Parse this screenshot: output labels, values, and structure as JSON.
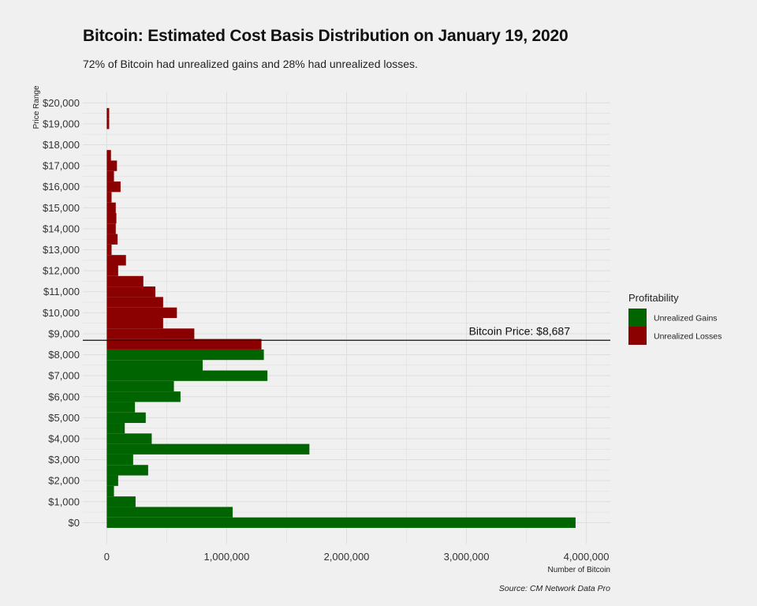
{
  "title": "Bitcoin: Estimated Cost Basis Distribution on January 19, 2020",
  "subtitle": "72% of Bitcoin had unrealized gains and 28% had unrealized losses.",
  "source": "Source: CM Network Data Pro",
  "colors": {
    "background": "#f0f0f0",
    "grid": "#dedede",
    "gains": "#006400",
    "losses": "#8b0000",
    "price_line": "#111111"
  },
  "chart_data": {
    "type": "bar",
    "orientation": "horizontal",
    "title": "Bitcoin: Estimated Cost Basis Distribution on January 19, 2020",
    "xlabel": "Number of Bitcoin",
    "ylabel": "Price Range",
    "xlim": [
      -200000,
      4200000
    ],
    "ylim": [
      -1000,
      20500
    ],
    "bin_width": 500,
    "x_ticks": [
      0,
      1000000,
      2000000,
      3000000,
      4000000
    ],
    "x_tick_labels": [
      "0",
      "1,000,000",
      "2,000,000",
      "3,000,000",
      "4,000,000"
    ],
    "y_ticks": [
      0,
      1000,
      2000,
      3000,
      4000,
      5000,
      6000,
      7000,
      8000,
      9000,
      10000,
      11000,
      12000,
      13000,
      14000,
      15000,
      16000,
      17000,
      18000,
      19000,
      20000
    ],
    "y_tick_labels": [
      "$0",
      "$1,000",
      "$2,000",
      "$3,000",
      "$4,000",
      "$5,000",
      "$6,000",
      "$7,000",
      "$8,000",
      "$9,000",
      "$10,000",
      "$11,000",
      "$12,000",
      "$13,000",
      "$14,000",
      "$15,000",
      "$16,000",
      "$17,000",
      "$18,000",
      "$19,000",
      "$20,000"
    ],
    "legend": {
      "title": "Profitability",
      "position": "right",
      "entries": [
        {
          "label": "Unrealized Gains",
          "color": "#006400"
        },
        {
          "label": "Unrealized Losses",
          "color": "#8b0000"
        }
      ]
    },
    "reference_line": {
      "value": 8687,
      "label": "Bitcoin Price: $8,687"
    },
    "series": [
      {
        "name": "Unrealized Gains",
        "color": "#006400",
        "price_bins": [
          0,
          500,
          1000,
          1500,
          2000,
          2500,
          3000,
          3500,
          4000,
          4500,
          5000,
          5500,
          6000,
          6500,
          7000,
          7500,
          8000
        ],
        "values": [
          3910000,
          1050000,
          240000,
          60000,
          95000,
          345000,
          220000,
          1690000,
          375000,
          150000,
          325000,
          235000,
          615000,
          560000,
          1340000,
          800000,
          1310000
        ]
      },
      {
        "name": "Unrealized Losses",
        "color": "#8b0000",
        "price_bins": [
          8500,
          9000,
          9500,
          10000,
          10500,
          11000,
          11500,
          12000,
          12500,
          13000,
          13500,
          14000,
          14500,
          15000,
          15500,
          16000,
          16500,
          17000,
          17500,
          19000,
          19500
        ],
        "values": [
          1290000,
          730000,
          470000,
          585000,
          470000,
          405000,
          305000,
          95000,
          160000,
          40000,
          90000,
          75000,
          80000,
          75000,
          40000,
          115000,
          60000,
          85000,
          35000,
          20000,
          20000
        ]
      }
    ]
  }
}
